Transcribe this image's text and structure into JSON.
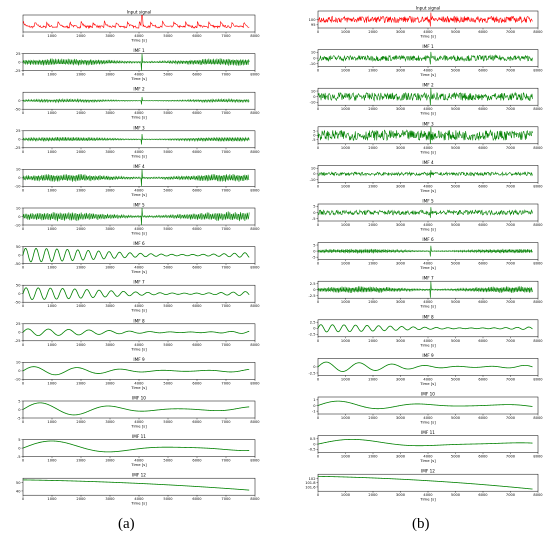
{
  "panel_labels": [
    "(a)",
    "(b)"
  ],
  "colors": {
    "input": "#ff0000",
    "imf": "#008000",
    "axis": "#000000"
  },
  "chart_data": [
    {
      "type": "line",
      "panel": "(a)",
      "xlabel": "Time [s]",
      "xlim": [
        0,
        8000
      ],
      "x_ticks": [
        0,
        1000,
        2000,
        3000,
        4000,
        5000,
        6000,
        7000,
        8000
      ],
      "signal_end": 7800,
      "subplots": [
        {
          "title": "Input signal",
          "color": "#ff0000",
          "ylim": [
            -20,
            100
          ],
          "y_ticks": [],
          "shape": "input"
        },
        {
          "title": "IMF 1",
          "color": "#008000",
          "ylim": [
            -25,
            25
          ],
          "y_ticks": [
            25,
            0,
            -25
          ],
          "shape": "dense",
          "amp": 12,
          "period": 280
        },
        {
          "title": "IMF 2",
          "color": "#008000",
          "ylim": [
            -50,
            50
          ],
          "y_ticks": [
            0,
            -50
          ],
          "shape": "dense",
          "amp": 10,
          "period": 320
        },
        {
          "title": "IMF 3",
          "color": "#008000",
          "ylim": [
            -25,
            25
          ],
          "y_ticks": [
            25,
            0,
            -25
          ],
          "shape": "dense",
          "amp": 7,
          "period": 300
        },
        {
          "title": "IMF 4",
          "color": "#008000",
          "ylim": [
            -10,
            10
          ],
          "y_ticks": [
            10,
            0,
            -10
          ],
          "shape": "dense",
          "amp": 5,
          "period": 350
        },
        {
          "title": "IMF 5",
          "color": "#008000",
          "ylim": [
            -10,
            10
          ],
          "y_ticks": [
            10,
            0,
            -10
          ],
          "shape": "dense",
          "amp": 6,
          "period": 500
        },
        {
          "title": "IMF 6",
          "color": "#008000",
          "ylim": [
            -50,
            50
          ],
          "y_ticks": [
            50,
            0,
            -50
          ],
          "shape": "wave",
          "amp": 40,
          "period": 360
        },
        {
          "title": "IMF 7",
          "color": "#008000",
          "ylim": [
            -50,
            50
          ],
          "y_ticks": [
            50,
            0,
            -50
          ],
          "shape": "wave",
          "amp": 35,
          "period": 420
        },
        {
          "title": "IMF 8",
          "color": "#008000",
          "ylim": [
            -25,
            25
          ],
          "y_ticks": [
            25,
            0,
            -25
          ],
          "shape": "wave",
          "amp": 10,
          "period": 700
        },
        {
          "title": "IMF 9",
          "color": "#008000",
          "ylim": [
            -10,
            10
          ],
          "y_ticks": [
            10,
            0,
            -10
          ],
          "shape": "wave",
          "amp": 5,
          "period": 1500
        },
        {
          "title": "IMF 10",
          "color": "#008000",
          "ylim": [
            -5,
            5
          ],
          "y_ticks": [
            5,
            0,
            -5
          ],
          "shape": "wave",
          "amp": 4,
          "period": 2400
        },
        {
          "title": "IMF 11",
          "color": "#008000",
          "ylim": [
            -5,
            5
          ],
          "y_ticks": [
            5,
            0,
            -5
          ],
          "shape": "wave",
          "amp": 4.5,
          "period": 4200
        },
        {
          "title": "IMF 12",
          "color": "#008000",
          "ylim": [
            35,
            55
          ],
          "y_ticks": [
            50,
            40
          ],
          "shape": "trend",
          "from": 53,
          "to": 41
        }
      ]
    },
    {
      "type": "line",
      "panel": "(b)",
      "xlabel": "Time [s]",
      "xlim": [
        0,
        8000
      ],
      "x_ticks": [
        0,
        1000,
        2000,
        3000,
        4000,
        5000,
        6000,
        7000,
        8000
      ],
      "signal_end": 7800,
      "subplots": [
        {
          "title": "Input signal",
          "color": "#ff0000",
          "ylim": [
            92,
            108
          ],
          "y_ticks": [
            100,
            95
          ],
          "shape": "noise",
          "amp": 3
        },
        {
          "title": "IMF 1",
          "color": "#008000",
          "ylim": [
            -15,
            15
          ],
          "y_ticks": [
            10,
            0,
            -10
          ],
          "shape": "noise",
          "amp": 5
        },
        {
          "title": "IMF 2",
          "color": "#008000",
          "ylim": [
            -15,
            15
          ],
          "y_ticks": [
            10,
            0,
            -10
          ],
          "shape": "noise",
          "amp": 7
        },
        {
          "title": "IMF 3",
          "color": "#008000",
          "ylim": [
            -10,
            10
          ],
          "y_ticks": [
            5,
            0,
            -5
          ],
          "shape": "noise",
          "amp": 6
        },
        {
          "title": "IMF 4",
          "color": "#008000",
          "ylim": [
            -15,
            15
          ],
          "y_ticks": [
            10,
            0,
            -10
          ],
          "shape": "noise",
          "amp": 3
        },
        {
          "title": "IMF 5",
          "color": "#008000",
          "ylim": [
            -7,
            7
          ],
          "y_ticks": [
            5,
            0,
            -5
          ],
          "shape": "noise",
          "amp": 2
        },
        {
          "title": "IMF 6",
          "color": "#008000",
          "ylim": [
            -7,
            7
          ],
          "y_ticks": [
            5,
            0,
            -5
          ],
          "shape": "dense",
          "amp": 2,
          "period": 180
        },
        {
          "title": "IMF 7",
          "color": "#008000",
          "ylim": [
            -3.5,
            3.5
          ],
          "y_ticks": [
            2.5,
            0.0,
            -2.5
          ],
          "shape": "dense",
          "amp": 1.5,
          "period": 250
        },
        {
          "title": "IMF 8",
          "color": "#008000",
          "ylim": [
            -3.5,
            3.5
          ],
          "y_ticks": [
            2.5,
            0.0,
            -2.5
          ],
          "shape": "wave",
          "amp": 1.5,
          "period": 420
        },
        {
          "title": "IMF 9",
          "color": "#008000",
          "ylim": [
            -3.5,
            3.5
          ],
          "y_ticks": [
            0.0,
            -2.5
          ],
          "shape": "wave",
          "amp": 2,
          "period": 1200
        },
        {
          "title": "IMF 10",
          "color": "#008000",
          "ylim": [
            -1.5,
            1.5
          ],
          "y_ticks": [
            1,
            0,
            -1
          ],
          "shape": "wave",
          "amp": 0.8,
          "period": 3000
        },
        {
          "title": "IMF 11",
          "color": "#008000",
          "ylim": [
            -0.8,
            0.8
          ],
          "y_ticks": [
            0.5,
            0.0,
            -0.5
          ],
          "shape": "wave",
          "amp": 0.5,
          "period": 5500
        },
        {
          "title": "IMF 12",
          "color": "#008000",
          "ylim": [
            101.4,
            102.2
          ],
          "y_ticks": [
            102.0,
            101.8,
            101.6
          ],
          "shape": "trend",
          "from": 102.1,
          "to": 101.5
        }
      ]
    }
  ]
}
